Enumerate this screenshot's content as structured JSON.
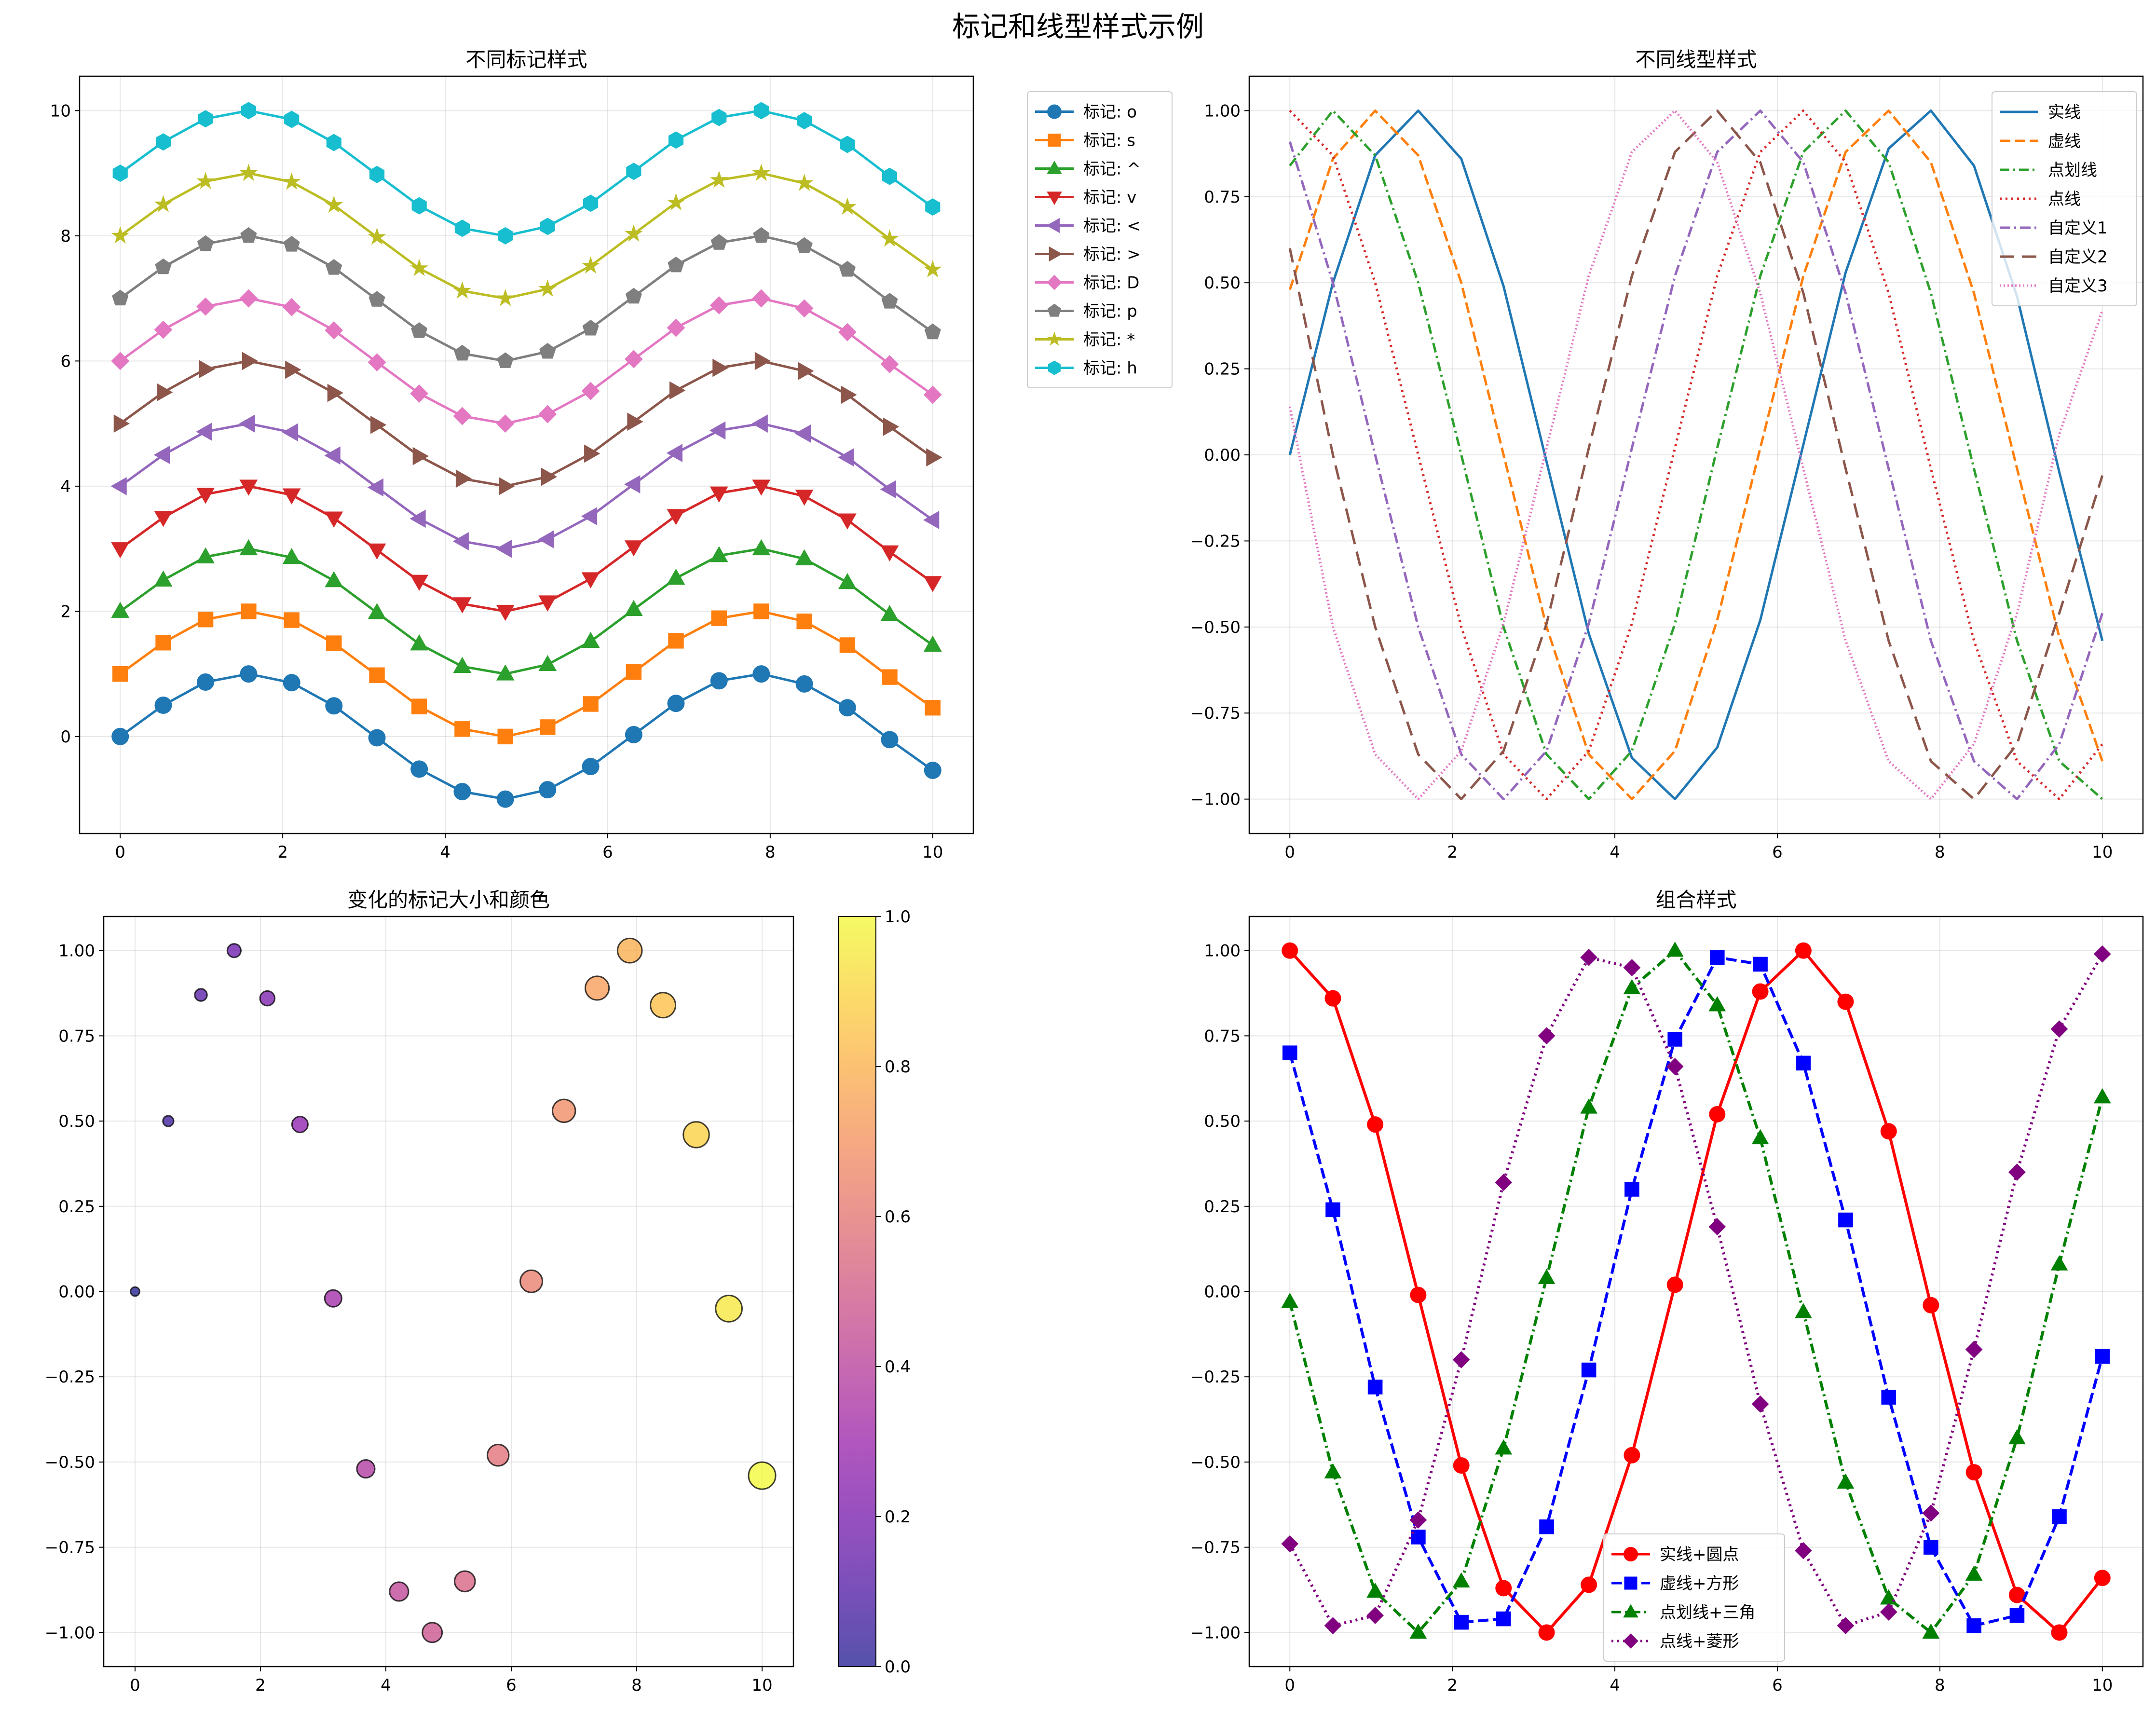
{
  "figure": {
    "title": "标记和线型样式示例"
  },
  "chart_data": [
    {
      "type": "line",
      "title": "不同标记样式",
      "xlim": [
        -0.5,
        10.5
      ],
      "ylim": [
        -1.55,
        10.55
      ],
      "xticks": [
        0,
        2,
        4,
        6,
        8,
        10
      ],
      "xtick_labels": [
        "0",
        "2",
        "4",
        "6",
        "8",
        "10"
      ],
      "yticks": [
        0,
        2,
        4,
        6,
        8,
        10
      ],
      "ytick_labels": [
        "0",
        "2",
        "4",
        "6",
        "8",
        "10"
      ],
      "grid": true,
      "legend_position": "outside upper right",
      "x": [
        0,
        0.53,
        1.05,
        1.58,
        2.11,
        2.63,
        3.16,
        3.68,
        4.21,
        4.74,
        5.26,
        5.79,
        6.32,
        6.84,
        7.37,
        7.89,
        8.42,
        8.95,
        9.47,
        10
      ],
      "series": [
        {
          "name": "标记: o",
          "color": "#1f77b4",
          "marker": "o",
          "values": [
            0,
            0.5,
            0.87,
            1,
            0.86,
            0.49,
            -0.02,
            -0.52,
            -0.88,
            -1,
            -0.85,
            -0.48,
            0.03,
            0.53,
            0.89,
            1,
            0.84,
            0.46,
            -0.05,
            -0.54
          ]
        },
        {
          "name": "标记: s",
          "color": "#ff7f0e",
          "marker": "s",
          "values": [
            1,
            1.5,
            1.87,
            2,
            1.86,
            1.49,
            0.98,
            0.48,
            0.12,
            0,
            0.15,
            0.52,
            1.03,
            1.53,
            1.89,
            2,
            1.84,
            1.46,
            0.95,
            0.46
          ]
        },
        {
          "name": "标记: ^",
          "color": "#2ca02c",
          "marker": "^",
          "values": [
            2,
            2.5,
            2.87,
            3,
            2.86,
            2.49,
            1.98,
            1.48,
            1.12,
            1,
            1.15,
            1.52,
            2.03,
            2.53,
            2.89,
            3,
            2.84,
            2.46,
            1.95,
            1.46
          ]
        },
        {
          "name": "标记: v",
          "color": "#d62728",
          "marker": "v",
          "values": [
            3,
            3.5,
            3.87,
            4,
            3.86,
            3.49,
            2.98,
            2.48,
            2.12,
            2,
            2.15,
            2.52,
            3.03,
            3.53,
            3.89,
            4,
            3.84,
            3.46,
            2.95,
            2.46
          ]
        },
        {
          "name": "标记: <",
          "color": "#9467bd",
          "marker": "<",
          "values": [
            4,
            4.5,
            4.87,
            5,
            4.86,
            4.49,
            3.98,
            3.48,
            3.12,
            3,
            3.15,
            3.52,
            4.03,
            4.53,
            4.89,
            5,
            4.84,
            4.46,
            3.95,
            3.46
          ]
        },
        {
          "name": "标记: >",
          "color": "#8c564b",
          "marker": ">",
          "values": [
            5,
            5.5,
            5.87,
            6,
            5.86,
            5.49,
            4.98,
            4.48,
            4.12,
            4,
            4.15,
            4.52,
            5.03,
            5.53,
            5.89,
            6,
            5.84,
            5.46,
            4.95,
            4.46
          ]
        },
        {
          "name": "标记: D",
          "color": "#e377c2",
          "marker": "D",
          "values": [
            6,
            6.5,
            6.87,
            7,
            6.86,
            6.49,
            5.98,
            5.48,
            5.12,
            5,
            5.15,
            5.52,
            6.03,
            6.53,
            6.89,
            7,
            6.84,
            6.46,
            5.95,
            5.46
          ]
        },
        {
          "name": "标记: p",
          "color": "#7f7f7f",
          "marker": "p",
          "values": [
            7,
            7.5,
            7.87,
            8,
            7.86,
            7.49,
            6.98,
            6.48,
            6.12,
            6,
            6.15,
            6.52,
            7.03,
            7.53,
            7.89,
            8,
            7.84,
            7.46,
            6.95,
            6.46
          ]
        },
        {
          "name": "标记: *",
          "color": "#bcbd22",
          "marker": "*",
          "values": [
            8,
            8.5,
            8.87,
            9,
            8.86,
            8.49,
            7.98,
            7.48,
            7.12,
            7,
            7.15,
            7.52,
            8.03,
            8.53,
            8.89,
            9,
            8.84,
            8.46,
            7.95,
            7.46
          ]
        },
        {
          "name": "标记: h",
          "color": "#17becf",
          "marker": "h",
          "values": [
            9,
            9.5,
            9.87,
            10,
            9.86,
            9.49,
            8.98,
            8.48,
            8.12,
            8,
            8.15,
            8.52,
            9.03,
            9.53,
            9.89,
            10,
            9.84,
            9.46,
            8.95,
            8.46
          ]
        }
      ]
    },
    {
      "type": "line",
      "title": "不同线型样式",
      "xlim": [
        -0.5,
        10.5
      ],
      "ylim": [
        -1.1,
        1.1
      ],
      "xticks": [
        0,
        2,
        4,
        6,
        8,
        10
      ],
      "xtick_labels": [
        "0",
        "2",
        "4",
        "6",
        "8",
        "10"
      ],
      "yticks": [
        -1,
        -0.75,
        -0.5,
        -0.25,
        0,
        0.25,
        0.5,
        0.75,
        1
      ],
      "ytick_labels": [
        "−1.00",
        "−0.75",
        "−0.50",
        "−0.25",
        "0.00",
        "0.25",
        "0.50",
        "0.75",
        "1.00"
      ],
      "grid": true,
      "legend_position": "upper right",
      "x": [
        0,
        0.53,
        1.05,
        1.58,
        2.11,
        2.63,
        3.16,
        3.68,
        4.21,
        4.74,
        5.26,
        5.79,
        6.32,
        6.84,
        7.37,
        7.89,
        8.42,
        8.95,
        9.47,
        10
      ],
      "series": [
        {
          "name": "实线",
          "color": "#1f77b4",
          "dash": "solid",
          "values": [
            0,
            0.5,
            0.87,
            1,
            0.86,
            0.49,
            -0.02,
            -0.52,
            -0.88,
            -1,
            -0.85,
            -0.48,
            0.03,
            0.53,
            0.89,
            1,
            0.84,
            0.46,
            -0.05,
            -0.54
          ]
        },
        {
          "name": "虚线",
          "color": "#ff7f0e",
          "dash": "dashed",
          "values": [
            0.48,
            0.86,
            1,
            0.87,
            0.5,
            0,
            -0.5,
            -0.87,
            -1,
            -0.86,
            -0.48,
            0.02,
            0.52,
            0.88,
            1,
            0.85,
            0.47,
            -0.04,
            -0.53,
            -0.89
          ]
        },
        {
          "name": "点划线",
          "color": "#2ca02c",
          "dash": "dashdot",
          "values": [
            0.84,
            1,
            0.87,
            0.5,
            0,
            -0.5,
            -0.87,
            -1,
            -0.86,
            -0.49,
            0.02,
            0.52,
            0.88,
            1,
            0.85,
            0.47,
            -0.04,
            -0.54,
            -0.89,
            -1
          ]
        },
        {
          "name": "点线",
          "color": "#d62728",
          "dash": "dotted",
          "values": [
            1,
            0.87,
            0.5,
            0,
            -0.5,
            -0.87,
            -1,
            -0.86,
            -0.49,
            0.02,
            0.52,
            0.88,
            1,
            0.85,
            0.47,
            -0.04,
            -0.54,
            -0.89,
            -1,
            -0.84
          ]
        },
        {
          "name": "自定义1",
          "color": "#9467bd",
          "dash": "custom1",
          "values": [
            0.91,
            0.5,
            0,
            -0.5,
            -0.87,
            -1,
            -0.86,
            -0.49,
            0.02,
            0.52,
            0.88,
            1,
            0.85,
            0.47,
            -0.04,
            -0.54,
            -0.89,
            -1,
            -0.84,
            -0.46
          ]
        },
        {
          "name": "自定义2",
          "color": "#8c564b",
          "dash": "custom2",
          "values": [
            0.6,
            0,
            -0.5,
            -0.87,
            -1,
            -0.86,
            -0.49,
            0.02,
            0.52,
            0.88,
            1,
            0.85,
            0.47,
            -0.04,
            -0.54,
            -0.89,
            -1,
            -0.84,
            -0.46,
            -0.06
          ]
        },
        {
          "name": "自定义3",
          "color": "#e377c2",
          "dash": "custom3",
          "values": [
            0.14,
            -0.5,
            -0.87,
            -1,
            -0.86,
            -0.49,
            0.02,
            0.52,
            0.88,
            1,
            0.85,
            0.47,
            -0.04,
            -0.54,
            -0.89,
            -1,
            -0.84,
            -0.46,
            0.06,
            0.42
          ]
        }
      ]
    },
    {
      "type": "scatter",
      "title": "变化的标记大小和颜色",
      "xlim": [
        -0.5,
        10.5
      ],
      "ylim": [
        -1.1,
        1.1
      ],
      "xticks": [
        0,
        2,
        4,
        6,
        8,
        10
      ],
      "xtick_labels": [
        "0",
        "2",
        "4",
        "6",
        "8",
        "10"
      ],
      "yticks": [
        -1,
        -0.75,
        -0.5,
        -0.25,
        0,
        0.25,
        0.5,
        0.75,
        1
      ],
      "ytick_labels": [
        "−1.00",
        "−0.75",
        "−0.50",
        "−0.25",
        "0.00",
        "0.25",
        "0.50",
        "0.75",
        "1.00"
      ],
      "grid": true,
      "colormap": "plasma",
      "alpha": 0.7,
      "colorbar": {
        "ticks": [
          0,
          0.2,
          0.4,
          0.6,
          0.8,
          1.0
        ],
        "tick_labels": [
          "0.0",
          "0.2",
          "0.4",
          "0.6",
          "0.8",
          "1.0"
        ]
      },
      "x": [
        0,
        0.53,
        1.05,
        1.58,
        2.11,
        2.63,
        3.16,
        3.68,
        4.21,
        4.74,
        5.26,
        5.79,
        6.32,
        6.84,
        7.37,
        7.89,
        8.42,
        8.95,
        9.47,
        10
      ],
      "y": [
        0,
        0.5,
        0.87,
        1,
        0.86,
        0.49,
        -0.02,
        -0.52,
        -0.88,
        -1,
        -0.85,
        -0.48,
        0.03,
        0.53,
        0.89,
        1,
        0.84,
        0.46,
        -0.05,
        -0.54
      ],
      "color_values": [
        0,
        0.05,
        0.11,
        0.16,
        0.21,
        0.26,
        0.32,
        0.37,
        0.42,
        0.47,
        0.53,
        0.58,
        0.63,
        0.68,
        0.74,
        0.79,
        0.84,
        0.89,
        0.95,
        1
      ],
      "sizes": [
        20,
        28,
        37,
        45,
        53,
        62,
        70,
        78,
        87,
        95,
        103,
        112,
        120,
        128,
        137,
        145,
        153,
        162,
        170,
        178
      ]
    },
    {
      "type": "line",
      "title": "组合样式",
      "xlim": [
        -0.5,
        10.5
      ],
      "ylim": [
        -1.1,
        1.1
      ],
      "xticks": [
        0,
        2,
        4,
        6,
        8,
        10
      ],
      "xtick_labels": [
        "0",
        "2",
        "4",
        "6",
        "8",
        "10"
      ],
      "yticks": [
        -1,
        -0.75,
        -0.5,
        -0.25,
        0,
        0.25,
        0.5,
        0.75,
        1
      ],
      "ytick_labels": [
        "−1.00",
        "−0.75",
        "−0.50",
        "−0.25",
        "0.00",
        "0.25",
        "0.50",
        "0.75",
        "1.00"
      ],
      "grid": true,
      "legend_position": "lower center",
      "x": [
        0,
        0.53,
        1.05,
        1.58,
        2.11,
        2.63,
        3.16,
        3.68,
        4.21,
        4.74,
        5.26,
        5.79,
        6.32,
        6.84,
        7.37,
        7.89,
        8.42,
        8.95,
        9.47,
        10
      ],
      "series": [
        {
          "name": "实线+圆点",
          "color": "#ff0000",
          "dash": "solid",
          "marker": "o",
          "values": [
            1,
            0.86,
            0.49,
            -0.01,
            -0.51,
            -0.87,
            -1,
            -0.86,
            -0.48,
            0.02,
            0.52,
            0.88,
            1,
            0.85,
            0.47,
            -0.04,
            -0.53,
            -0.89,
            -1,
            -0.84
          ]
        },
        {
          "name": "虚线+方形",
          "color": "#0000ff",
          "dash": "dashed",
          "marker": "s",
          "values": [
            0.7,
            0.24,
            -0.28,
            -0.72,
            -0.97,
            -0.96,
            -0.69,
            -0.23,
            0.3,
            0.74,
            0.98,
            0.96,
            0.67,
            0.21,
            -0.31,
            -0.75,
            -0.98,
            -0.95,
            -0.66,
            -0.19
          ]
        },
        {
          "name": "点划线+三角",
          "color": "#008000",
          "dash": "dashdot",
          "marker": "^",
          "values": [
            -0.03,
            -0.53,
            -0.88,
            -1,
            -0.85,
            -0.46,
            0.04,
            0.54,
            0.89,
            1,
            0.84,
            0.45,
            -0.06,
            -0.56,
            -0.9,
            -1,
            -0.83,
            -0.43,
            0.08,
            0.57
          ]
        },
        {
          "name": "点线+菱形",
          "color": "#800080",
          "dash": "dotted",
          "marker": "D",
          "values": [
            -0.74,
            -0.98,
            -0.95,
            -0.67,
            -0.2,
            0.32,
            0.75,
            0.98,
            0.95,
            0.66,
            0.19,
            -0.33,
            -0.76,
            -0.98,
            -0.94,
            -0.65,
            -0.17,
            0.35,
            0.77,
            0.99
          ]
        }
      ]
    }
  ]
}
